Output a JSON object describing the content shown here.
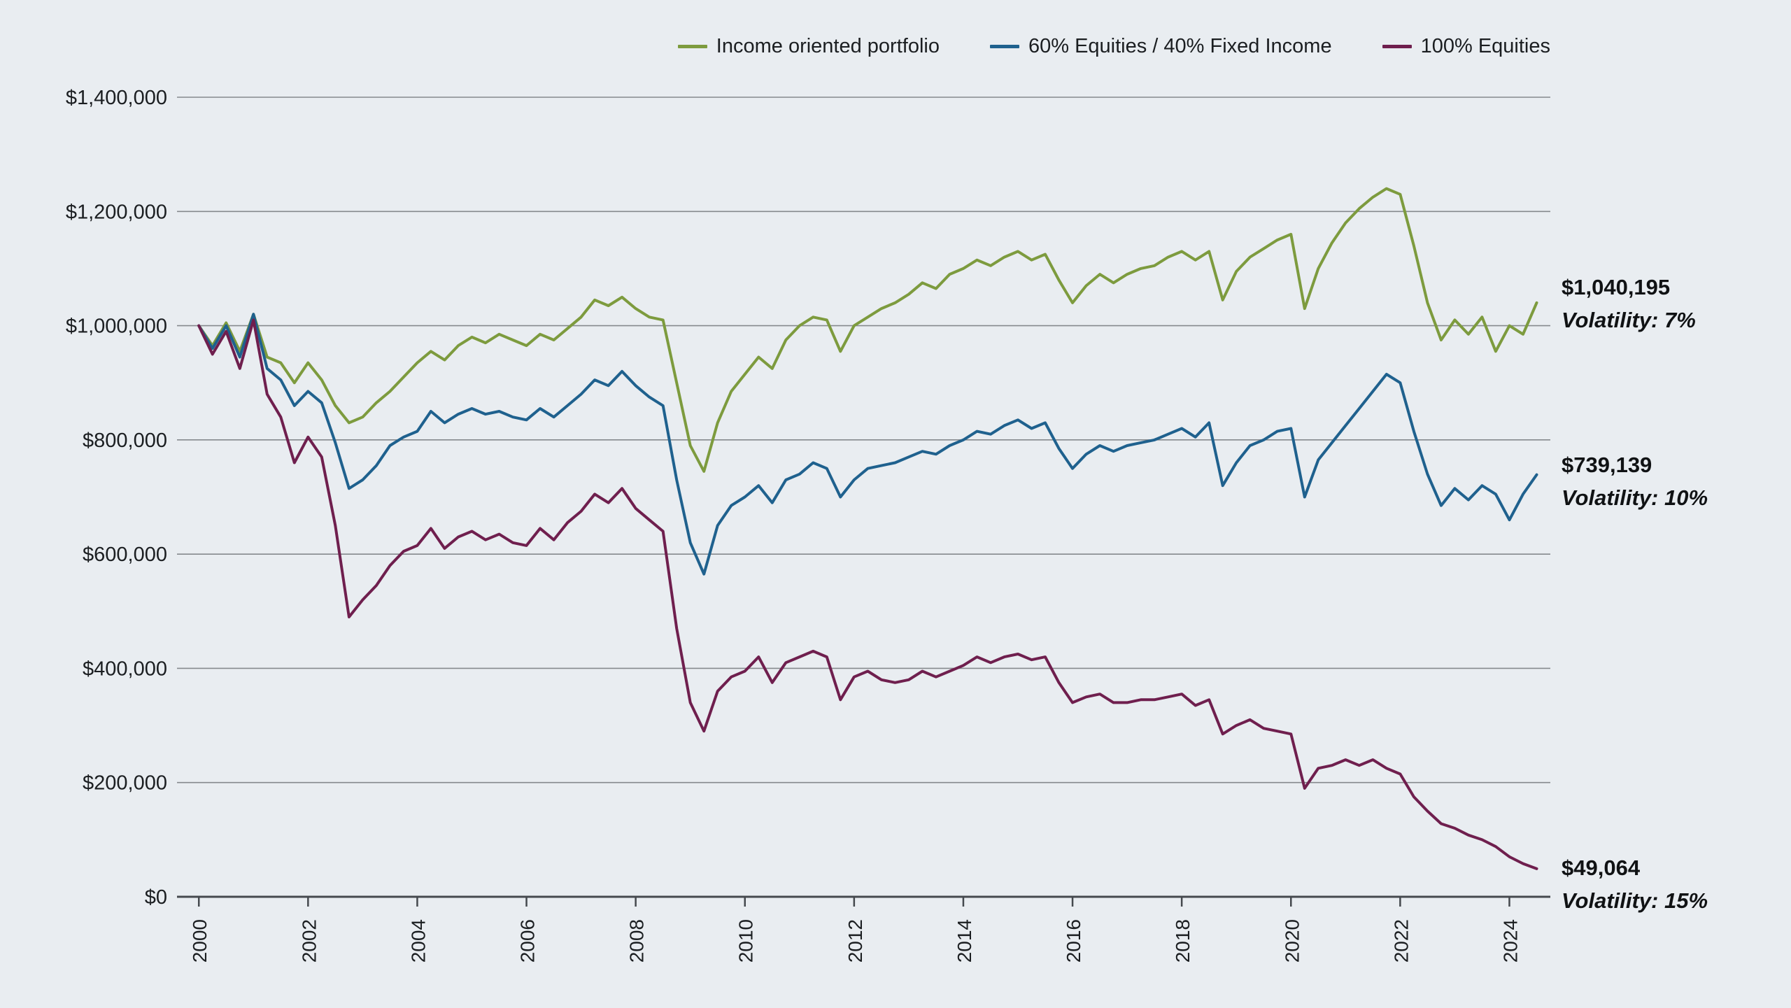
{
  "chart_data": {
    "type": "line",
    "title": "",
    "legend_position": "top",
    "grid": "horizontal",
    "x_axis_label": "",
    "y_axis_label": "",
    "x_start": 2000,
    "x_step": 0.25,
    "x_end": 2024.5,
    "xlim": [
      1999.6,
      2024.75
    ],
    "ylim_thousands": [
      0,
      1400
    ],
    "values_unit": "USD thousands",
    "colors": {
      "background": "#e9edf1",
      "grid": "#85898d",
      "axis": "#45494e",
      "text": "#1b1e21"
    },
    "y_ticks": [
      {
        "value": 0,
        "label": "$0"
      },
      {
        "value": 200,
        "label": "$200,000"
      },
      {
        "value": 400,
        "label": "$400,000"
      },
      {
        "value": 600,
        "label": "$600,000"
      },
      {
        "value": 800,
        "label": "$800,000"
      },
      {
        "value": 1000,
        "label": "$1,000,000"
      },
      {
        "value": 1200,
        "label": "$1,200,000"
      },
      {
        "value": 1400,
        "label": "$1,400,000"
      }
    ],
    "x_ticks": [
      {
        "value": 2000,
        "label": "2000"
      },
      {
        "value": 2002,
        "label": "2002"
      },
      {
        "value": 2004,
        "label": "2004"
      },
      {
        "value": 2006,
        "label": "2006"
      },
      {
        "value": 2008,
        "label": "2008"
      },
      {
        "value": 2010,
        "label": "2010"
      },
      {
        "value": 2012,
        "label": "2012"
      },
      {
        "value": 2014,
        "label": "2014"
      },
      {
        "value": 2016,
        "label": "2016"
      },
      {
        "value": 2018,
        "label": "2018"
      },
      {
        "value": 2020,
        "label": "2020"
      },
      {
        "value": 2022,
        "label": "2022"
      },
      {
        "value": 2024,
        "label": "2024"
      }
    ],
    "series": [
      {
        "name": "Income oriented portfolio",
        "color": "#7d9b3e",
        "final_label": "$1,040,195",
        "volatility_label": "Volatility: 7%",
        "values_thousands": [
          1000,
          965,
          1005,
          955,
          1020,
          945,
          935,
          900,
          935,
          905,
          860,
          830,
          840,
          865,
          885,
          910,
          935,
          955,
          940,
          965,
          980,
          970,
          985,
          975,
          965,
          985,
          975,
          995,
          1015,
          1045,
          1035,
          1050,
          1030,
          1015,
          1010,
          900,
          790,
          745,
          830,
          885,
          915,
          945,
          925,
          975,
          1000,
          1015,
          1010,
          955,
          1000,
          1015,
          1030,
          1040,
          1055,
          1075,
          1065,
          1090,
          1100,
          1115,
          1105,
          1120,
          1130,
          1115,
          1125,
          1080,
          1040,
          1070,
          1090,
          1075,
          1090,
          1100,
          1105,
          1120,
          1130,
          1115,
          1130,
          1045,
          1095,
          1120,
          1135,
          1150,
          1160,
          1030,
          1100,
          1145,
          1180,
          1205,
          1225,
          1240,
          1230,
          1140,
          1040,
          975,
          1010,
          985,
          1015,
          955,
          1000,
          985,
          1040.2
        ]
      },
      {
        "name": "60% Equities / 40% Fixed Income",
        "color": "#1f618e",
        "final_label": "$739,139",
        "volatility_label": "Volatility: 10%",
        "values_thousands": [
          1000,
          960,
          1000,
          945,
          1020,
          925,
          905,
          860,
          885,
          865,
          795,
          715,
          730,
          755,
          790,
          805,
          815,
          850,
          830,
          845,
          855,
          845,
          850,
          840,
          835,
          855,
          840,
          860,
          880,
          905,
          895,
          920,
          895,
          875,
          860,
          730,
          620,
          565,
          650,
          685,
          700,
          720,
          690,
          730,
          740,
          760,
          750,
          700,
          730,
          750,
          755,
          760,
          770,
          780,
          775,
          790,
          800,
          815,
          810,
          825,
          835,
          820,
          830,
          785,
          750,
          775,
          790,
          780,
          790,
          795,
          800,
          810,
          820,
          805,
          830,
          720,
          760,
          790,
          800,
          815,
          820,
          700,
          765,
          795,
          825,
          855,
          885,
          915,
          900,
          815,
          740,
          685,
          715,
          695,
          720,
          705,
          660,
          705,
          739.1
        ]
      },
      {
        "name": "100% Equities",
        "color": "#6f1f4e",
        "final_label": "$49,064",
        "volatility_label": "Volatility: 15%",
        "values_thousands": [
          1000,
          950,
          990,
          925,
          1010,
          880,
          840,
          760,
          805,
          770,
          650,
          490,
          520,
          545,
          580,
          605,
          615,
          645,
          610,
          630,
          640,
          625,
          635,
          620,
          615,
          645,
          625,
          655,
          675,
          705,
          690,
          715,
          680,
          660,
          640,
          470,
          340,
          290,
          360,
          385,
          395,
          420,
          375,
          410,
          420,
          430,
          420,
          345,
          385,
          395,
          380,
          375,
          380,
          395,
          385,
          395,
          405,
          420,
          410,
          420,
          425,
          415,
          420,
          375,
          340,
          350,
          355,
          340,
          340,
          345,
          345,
          350,
          355,
          335,
          345,
          285,
          300,
          310,
          295,
          290,
          285,
          190,
          225,
          230,
          240,
          230,
          240,
          225,
          215,
          175,
          150,
          128,
          120,
          108,
          100,
          88,
          70,
          58,
          49.1
        ]
      }
    ]
  }
}
